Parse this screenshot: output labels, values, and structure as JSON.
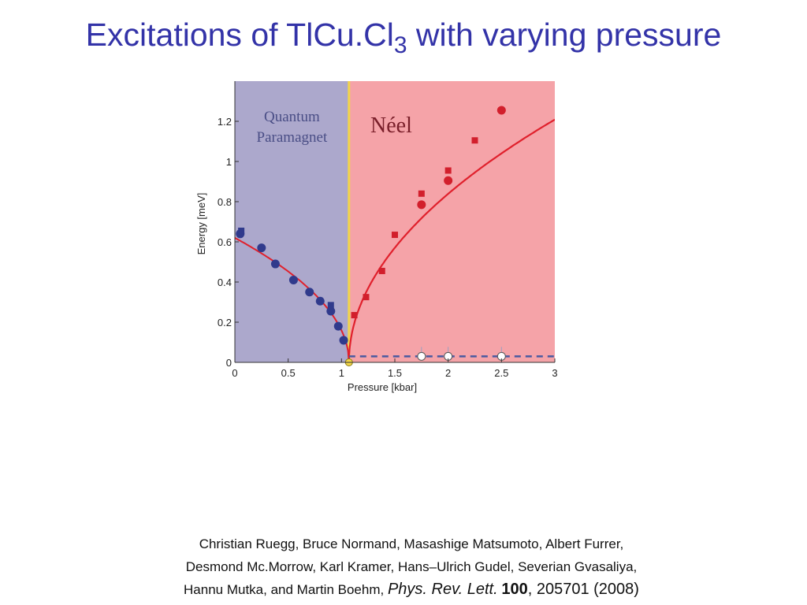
{
  "slide": {
    "title_prefix": "Excitations of TlCu.Cl",
    "title_subscript": "3",
    "title_suffix": " with varying pressure"
  },
  "colors": {
    "title": "#3333a8",
    "qpm_region": "#aca8cc",
    "neel_region": "#f5a3a8",
    "transition_line": "#f2d54a",
    "blue_points": "#303a8c",
    "red_points": "#d21f2c",
    "fit_curve": "#e0202c",
    "dashed_line": "#4a5aa0"
  },
  "chart_data": {
    "type": "scatter",
    "title": "",
    "xlabel": "Pressure [kbar]",
    "ylabel": "Energy [meV]",
    "xlim": [
      0,
      3
    ],
    "ylim": [
      0,
      1.4
    ],
    "x_ticks": [
      0,
      0.5,
      1,
      1.5,
      2,
      2.5,
      3
    ],
    "x_tick_labels": [
      "0",
      "0.5",
      "1",
      "1.5",
      "2",
      "2.5",
      "3"
    ],
    "y_ticks": [
      0,
      0.2,
      0.4,
      0.6,
      0.8,
      1,
      1.2
    ],
    "y_tick_labels": [
      "0",
      "0.2",
      "0.4",
      "0.6",
      "0.8",
      "1",
      "1.2"
    ],
    "grid": false,
    "critical_pressure": 1.07,
    "regions": [
      {
        "label_line1": "Quantum",
        "label_line2": "Paramagnet",
        "x_range": [
          0,
          1.07
        ]
      },
      {
        "label_line1": "Néel",
        "label_line2": "",
        "x_range": [
          1.07,
          3
        ]
      }
    ],
    "series": [
      {
        "marker": "circle",
        "color": "blue",
        "x": [
          0.05,
          0.25,
          0.38,
          0.55,
          0.7,
          0.8,
          0.9,
          0.97,
          1.02
        ],
        "y": [
          0.64,
          0.57,
          0.49,
          0.41,
          0.35,
          0.305,
          0.255,
          0.18,
          0.11
        ]
      },
      {
        "marker": "square",
        "color": "blue",
        "x": [
          0.06,
          0.9
        ],
        "y": [
          0.655,
          0.285
        ]
      },
      {
        "marker": "square",
        "color": "red",
        "x": [
          1.12,
          1.23,
          1.38,
          1.5,
          1.75,
          2.0,
          2.25
        ],
        "y": [
          0.235,
          0.325,
          0.455,
          0.635,
          0.84,
          0.955,
          1.105
        ]
      },
      {
        "marker": "circle",
        "color": "red",
        "x": [
          1.75,
          2.0,
          2.5
        ],
        "y": [
          0.785,
          0.905,
          1.255
        ]
      },
      {
        "marker": "open-circle",
        "color": "white",
        "x": [
          1.75,
          2.0,
          2.5
        ],
        "y": [
          0.03,
          0.03,
          0.03
        ]
      },
      {
        "marker": "circle",
        "color": "yellow",
        "x": [
          1.07
        ],
        "y": [
          0.0
        ]
      }
    ],
    "dashed_line_y": 0.03,
    "fit_amplitude_low": 0.62,
    "fit_amplitude_high": 0.87
  },
  "citation": {
    "line1": "Christian Ruegg, Bruce Normand, Masashige Matsumoto, Albert Furrer,",
    "line2": "Desmond Mc.Morrow, Karl Kramer, Hans–Ulrich Gudel, Severian Gvasaliya,",
    "line3_authors": "Hannu Mutka, and Martin Boehm,",
    "journal": "Phys. Rev. Lett.",
    "volume": "100",
    "article_year": ", 205701 (2008)"
  }
}
